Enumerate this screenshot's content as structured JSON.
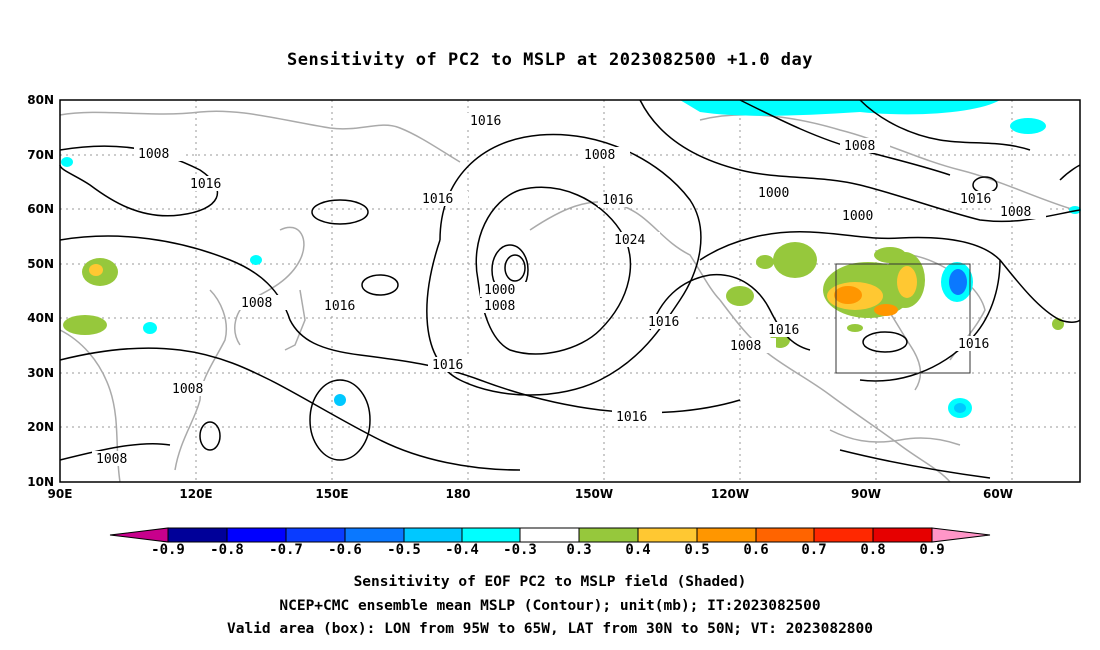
{
  "title": "Sensitivity of PC2 to MSLP at 2023082500 +1.0 day",
  "map": {
    "lat_labels": [
      "80N",
      "70N",
      "60N",
      "50N",
      "40N",
      "30N",
      "20N",
      "10N"
    ],
    "lon_labels": [
      "90E",
      "120E",
      "150E",
      "180",
      "150W",
      "120W",
      "90W",
      "60W"
    ],
    "contour_labels": [
      "1016",
      "1008",
      "1016",
      "1008",
      "1016",
      "1008",
      "1000",
      "1016",
      "1024",
      "1008",
      "1016",
      "1016",
      "1008",
      "1016",
      "1008",
      "1016",
      "1008",
      "1016",
      "1000",
      "1000",
      "1008",
      "1016",
      "1008"
    ],
    "box": {
      "lon_from": "95W",
      "lon_to": "65W",
      "lat_from": "30N",
      "lat_to": "50N"
    }
  },
  "colorbar": {
    "labels": [
      "-0.9",
      "-0.8",
      "-0.7",
      "-0.6",
      "-0.5",
      "-0.4",
      "-0.3",
      "0.3",
      "0.4",
      "0.5",
      "0.6",
      "0.7",
      "0.8",
      "0.9"
    ],
    "colors": [
      "#c8008c",
      "#000099",
      "#0000ff",
      "#0a3cff",
      "#0a78ff",
      "#00c8ff",
      "#00ffff",
      "#ffffff",
      "#96c83c",
      "#ffc832",
      "#ff9600",
      "#ff6400",
      "#ff2800",
      "#e60000",
      "#ff96c8"
    ]
  },
  "caption": {
    "line1": "Sensitivity of EOF PC2 to MSLP field (Shaded)",
    "line2": "NCEP+CMC ensemble mean MSLP (Contour); unit(mb); IT:2023082500",
    "line3": "Valid area (box): LON from 95W to 65W, LAT from 30N to 50N; VT: 2023082800"
  }
}
